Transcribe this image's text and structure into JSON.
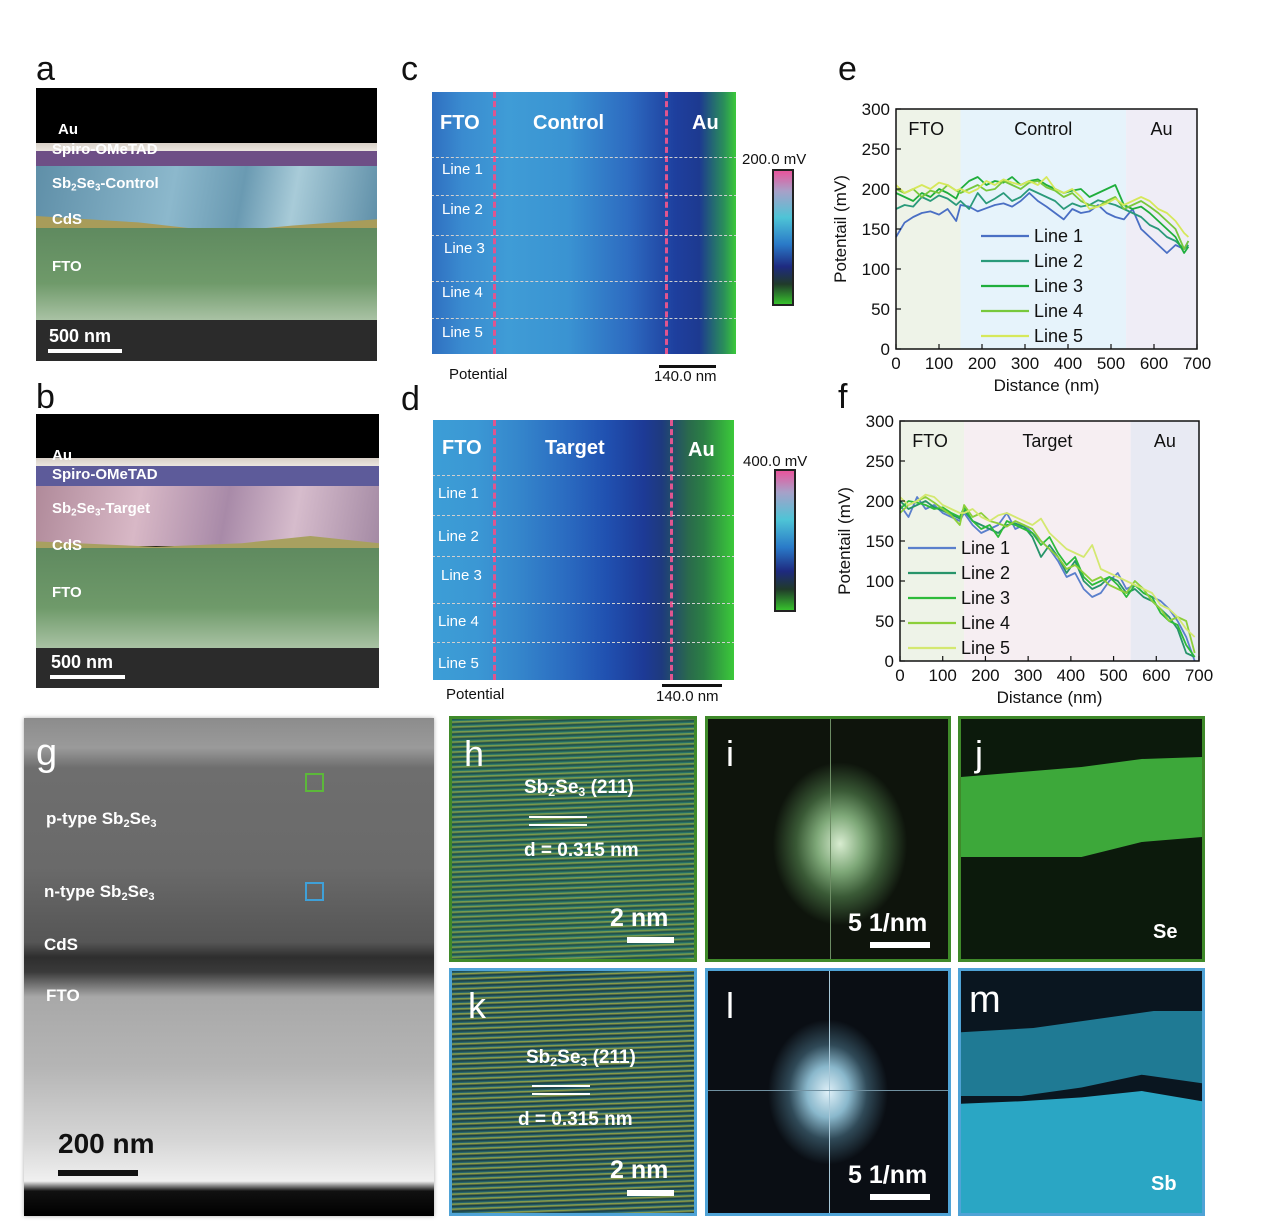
{
  "figure": {
    "panel_labels": [
      "a",
      "b",
      "c",
      "d",
      "e",
      "f",
      "g",
      "h",
      "i",
      "j",
      "k",
      "l",
      "m"
    ],
    "panel_a": {
      "layers": [
        "Au",
        "Spiro-OMeTAD",
        "Sb2Se3-Control",
        "CdS",
        "FTO"
      ],
      "layer_prefix": "Sb",
      "layer_mid": "Se",
      "layer_suffix": "-Control",
      "scale_bar": "500 nm"
    },
    "panel_b": {
      "layers": [
        "Au",
        "Spiro-OMeTAD",
        "Sb2Se3-Target",
        "CdS",
        "FTO"
      ],
      "layer_suffix": "-Target",
      "scale_bar": "500 nm"
    },
    "panel_c": {
      "regions": [
        "FTO",
        "Control",
        "Au"
      ],
      "lines": [
        "Line 1",
        "Line 2",
        "Line 3",
        "Line 4",
        "Line 5"
      ],
      "colorbar_max": "200.0 mV",
      "footer_left": "Potential",
      "scale_bar": "140.0 nm"
    },
    "panel_d": {
      "regions": [
        "FTO",
        "Target",
        "Au"
      ],
      "lines": [
        "Line 1",
        "Line 2",
        "Line 3",
        "Line 4",
        "Line 5"
      ],
      "colorbar_max": "400.0 mV",
      "footer_left": "Potential",
      "scale_bar": "140.0 nm"
    },
    "panel_g": {
      "labels": [
        "p-type Sb2Se3",
        "n-type Sb2Se3",
        "CdS",
        "FTO"
      ],
      "p_prefix": "p-type Sb",
      "n_prefix": "n-type Sb",
      "mid": "Se",
      "cds": "CdS",
      "fto": "FTO",
      "scale_bar": "200 nm",
      "roi_colors": {
        "p_type": "#5cb83a",
        "n_type": "#3fa0d8"
      }
    },
    "panel_h": {
      "plane_prefix": "Sb",
      "plane_mid": "Se",
      "plane_suffix": "(211)",
      "d_spacing": "d = 0.315 nm",
      "scale_bar": "2 nm",
      "frame_color": "#3f8a2a"
    },
    "panel_i": {
      "scale_bar": "5 1/nm",
      "frame_color": "#3f8a2a"
    },
    "panel_j": {
      "element": "Se",
      "frame_color": "#3f8a2a"
    },
    "panel_k": {
      "plane_prefix": "Sb",
      "plane_mid": "Se",
      "plane_suffix": "(211)",
      "d_spacing": "d = 0.315 nm",
      "scale_bar": "2 nm",
      "frame_color": "#4fa3d6"
    },
    "panel_l": {
      "scale_bar": "5 1/nm",
      "frame_color": "#4fa3d6"
    },
    "panel_m": {
      "element": "Sb",
      "frame_color": "#4fa3d6"
    }
  },
  "chart_data": [
    {
      "panel": "e",
      "type": "line",
      "title": "",
      "xlabel": "Distance (nm)",
      "ylabel": "Potentail (mV)",
      "xlim": [
        0,
        700
      ],
      "ylim": [
        0,
        300
      ],
      "xticks": [
        0,
        100,
        200,
        300,
        400,
        500,
        600,
        700
      ],
      "yticks": [
        0,
        50,
        100,
        150,
        200,
        250,
        300
      ],
      "regions": [
        {
          "label": "FTO",
          "x": [
            0,
            150
          ],
          "color": "#eef3e8"
        },
        {
          "label": "Control",
          "x": [
            150,
            535
          ],
          "color": "#e6f3fb"
        },
        {
          "label": "Au",
          "x": [
            535,
            700
          ],
          "color": "#efedf6"
        }
      ],
      "legend_position": "center",
      "x": [
        0,
        20,
        40,
        60,
        80,
        100,
        120,
        140,
        150,
        170,
        190,
        210,
        230,
        250,
        270,
        290,
        310,
        330,
        350,
        370,
        390,
        410,
        430,
        450,
        470,
        490,
        510,
        530,
        550,
        570,
        590,
        610,
        630,
        650,
        670,
        680
      ],
      "series": [
        {
          "name": "Line 1",
          "color": "#4a6fc4",
          "values": [
            140,
            158,
            165,
            170,
            172,
            168,
            175,
            160,
            180,
            178,
            172,
            176,
            180,
            182,
            178,
            185,
            195,
            185,
            178,
            170,
            162,
            175,
            170,
            172,
            180,
            170,
            165,
            162,
            175,
            150,
            140,
            130,
            120,
            130,
            125,
            135
          ]
        },
        {
          "name": "Line 2",
          "color": "#2a9a7a",
          "values": [
            175,
            180,
            178,
            190,
            185,
            192,
            188,
            180,
            185,
            175,
            195,
            182,
            188,
            195,
            185,
            190,
            200,
            195,
            190,
            185,
            175,
            182,
            178,
            180,
            186,
            183,
            180,
            175,
            170,
            165,
            155,
            150,
            140,
            135,
            125,
            130
          ]
        },
        {
          "name": "Line 3",
          "color": "#1fae3c",
          "values": [
            195,
            190,
            185,
            195,
            190,
            200,
            195,
            188,
            200,
            210,
            215,
            205,
            210,
            208,
            215,
            205,
            210,
            212,
            205,
            200,
            195,
            198,
            200,
            190,
            195,
            200,
            205,
            180,
            175,
            178,
            170,
            160,
            150,
            140,
            120,
            128
          ]
        },
        {
          "name": "Line 4",
          "color": "#78c83c",
          "values": [
            200,
            195,
            200,
            190,
            198,
            195,
            205,
            198,
            195,
            200,
            205,
            198,
            200,
            210,
            205,
            200,
            208,
            210,
            202,
            198,
            190,
            195,
            185,
            180,
            178,
            185,
            190,
            175,
            180,
            185,
            178,
            170,
            160,
            150,
            125,
            135
          ]
        },
        {
          "name": "Line 5",
          "color": "#d6e85a",
          "values": [
            205,
            195,
            200,
            205,
            200,
            208,
            205,
            198,
            200,
            195,
            200,
            210,
            205,
            212,
            208,
            205,
            210,
            205,
            215,
            200,
            195,
            200,
            190,
            175,
            178,
            182,
            188,
            180,
            185,
            190,
            185,
            175,
            170,
            160,
            145,
            140
          ]
        }
      ]
    },
    {
      "panel": "f",
      "type": "line",
      "title": "",
      "xlabel": "Distance (nm)",
      "ylabel": "Potentail (mV)",
      "xlim": [
        0,
        700
      ],
      "ylim": [
        0,
        300
      ],
      "xticks": [
        0,
        100,
        200,
        300,
        400,
        500,
        600,
        700
      ],
      "yticks": [
        0,
        50,
        100,
        150,
        200,
        250,
        300
      ],
      "regions": [
        {
          "label": "FTO",
          "x": [
            0,
            150
          ],
          "color": "#eef3e8"
        },
        {
          "label": "Target",
          "x": [
            150,
            540
          ],
          "color": "#f6eef2"
        },
        {
          "label": "Au",
          "x": [
            540,
            700
          ],
          "color": "#e8eaf3"
        }
      ],
      "legend_position": "bottom-left",
      "x": [
        0,
        20,
        40,
        60,
        80,
        100,
        120,
        140,
        150,
        170,
        190,
        210,
        230,
        250,
        270,
        290,
        310,
        330,
        350,
        370,
        390,
        410,
        430,
        450,
        470,
        490,
        510,
        530,
        550,
        570,
        590,
        610,
        630,
        650,
        670,
        690
      ],
      "series": [
        {
          "name": "Line 1",
          "color": "#5a7fcc",
          "values": [
            195,
            180,
            205,
            190,
            195,
            185,
            180,
            175,
            185,
            170,
            160,
            165,
            170,
            185,
            165,
            170,
            160,
            150,
            140,
            125,
            105,
            110,
            90,
            80,
            85,
            100,
            110,
            90,
            95,
            85,
            80,
            75,
            65,
            50,
            30,
            0
          ]
        },
        {
          "name": "Line 2",
          "color": "#27946a",
          "values": [
            200,
            190,
            195,
            200,
            192,
            188,
            183,
            178,
            188,
            175,
            170,
            165,
            160,
            170,
            172,
            168,
            155,
            130,
            145,
            130,
            110,
            125,
            100,
            90,
            95,
            105,
            100,
            85,
            90,
            80,
            75,
            65,
            55,
            40,
            10,
            5
          ]
        },
        {
          "name": "Line 3",
          "color": "#2dbb3a",
          "values": [
            190,
            200,
            198,
            195,
            190,
            192,
            185,
            180,
            192,
            175,
            165,
            170,
            155,
            175,
            170,
            165,
            160,
            145,
            155,
            135,
            120,
            130,
            105,
            95,
            100,
            105,
            95,
            80,
            95,
            85,
            80,
            60,
            50,
            45,
            20,
            5
          ]
        },
        {
          "name": "Line 4",
          "color": "#8ccf3a",
          "values": [
            185,
            195,
            200,
            205,
            198,
            190,
            182,
            170,
            195,
            180,
            185,
            175,
            172,
            168,
            175,
            170,
            165,
            150,
            140,
            130,
            115,
            120,
            110,
            100,
            105,
            95,
            90,
            85,
            100,
            90,
            75,
            65,
            50,
            55,
            50,
            10
          ]
        },
        {
          "name": "Line 5",
          "color": "#d4e870",
          "values": [
            205,
            195,
            200,
            208,
            205,
            195,
            190,
            185,
            185,
            190,
            180,
            175,
            182,
            185,
            180,
            175,
            170,
            178,
            160,
            150,
            140,
            135,
            130,
            145,
            115,
            110,
            105,
            100,
            95,
            90,
            85,
            70,
            65,
            55,
            40,
            30
          ]
        }
      ]
    }
  ]
}
